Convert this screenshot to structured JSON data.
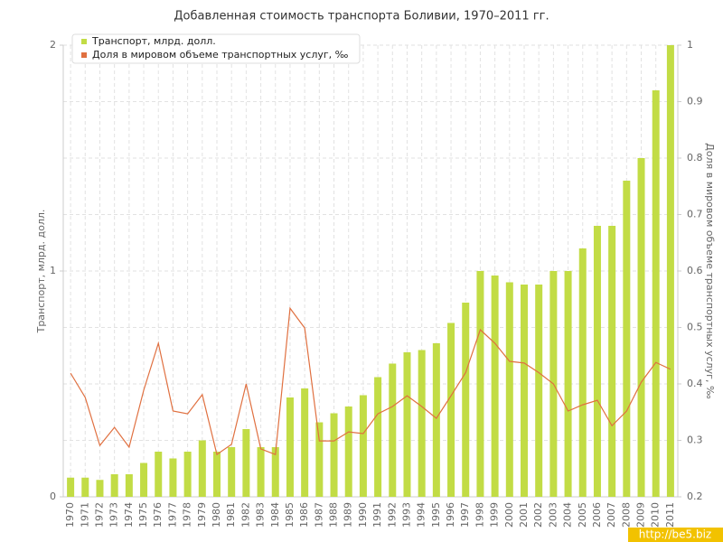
{
  "chart_data": {
    "type": "bar-line",
    "title": "Добавленная стоимость транспорта Боливии, 1970–2011 гг.",
    "y_label": "Транспорт, млрд. долл.",
    "y2_label": "Доля в мировом объеме транспортных услуг, ‰",
    "categories": [
      "1970",
      "1971",
      "1972",
      "1973",
      "1974",
      "1975",
      "1976",
      "1977",
      "1978",
      "1979",
      "1980",
      "1981",
      "1982",
      "1983",
      "1984",
      "1985",
      "1986",
      "1987",
      "1988",
      "1989",
      "1990",
      "1991",
      "1992",
      "1993",
      "1994",
      "1995",
      "1996",
      "1997",
      "1998",
      "1999",
      "2000",
      "2001",
      "2002",
      "2003",
      "2004",
      "2005",
      "2006",
      "2007",
      "2008",
      "2009",
      "2010",
      "2011"
    ],
    "series": [
      {
        "name": "Транспорт, млрд. долл.",
        "color": "#c2dc45",
        "type": "bar",
        "values": [
          0.085,
          0.085,
          0.075,
          0.1,
          0.1,
          0.15,
          0.2,
          0.17,
          0.2,
          0.25,
          0.2,
          0.22,
          0.3,
          0.22,
          0.22,
          0.44,
          0.48,
          0.33,
          0.37,
          0.4,
          0.45,
          0.53,
          0.59,
          0.64,
          0.65,
          0.68,
          0.77,
          0.86,
          1.0,
          0.98,
          0.95,
          0.94,
          0.94,
          1.0,
          1.0,
          1.1,
          1.2,
          1.2,
          1.4,
          1.5,
          1.8,
          2.0
        ]
      },
      {
        "name": "Доля в мировом объеме транспортных услуг, ‰",
        "color": "#e07040",
        "type": "line",
        "axis": "y2",
        "values": [
          0.419,
          0.376,
          0.291,
          0.323,
          0.288,
          0.389,
          0.472,
          0.352,
          0.347,
          0.381,
          0.275,
          0.293,
          0.4,
          0.285,
          0.275,
          0.534,
          0.499,
          0.299,
          0.299,
          0.315,
          0.312,
          0.347,
          0.36,
          0.379,
          0.36,
          0.339,
          0.379,
          0.42,
          0.496,
          0.472,
          0.44,
          0.437,
          0.42,
          0.4,
          0.352,
          0.363,
          0.371,
          0.326,
          0.352,
          0.403,
          0.438,
          0.426
        ]
      }
    ],
    "ylim": [
      0,
      2
    ],
    "yticks": [
      0,
      1,
      2
    ],
    "y2lim": [
      0.2,
      1
    ],
    "y2ticks": [
      0.2,
      0.3,
      0.4,
      0.5,
      0.6,
      0.7,
      0.8,
      0.9,
      1
    ],
    "grid": true,
    "legend": "top-left",
    "watermark": "http://be5.biz"
  }
}
